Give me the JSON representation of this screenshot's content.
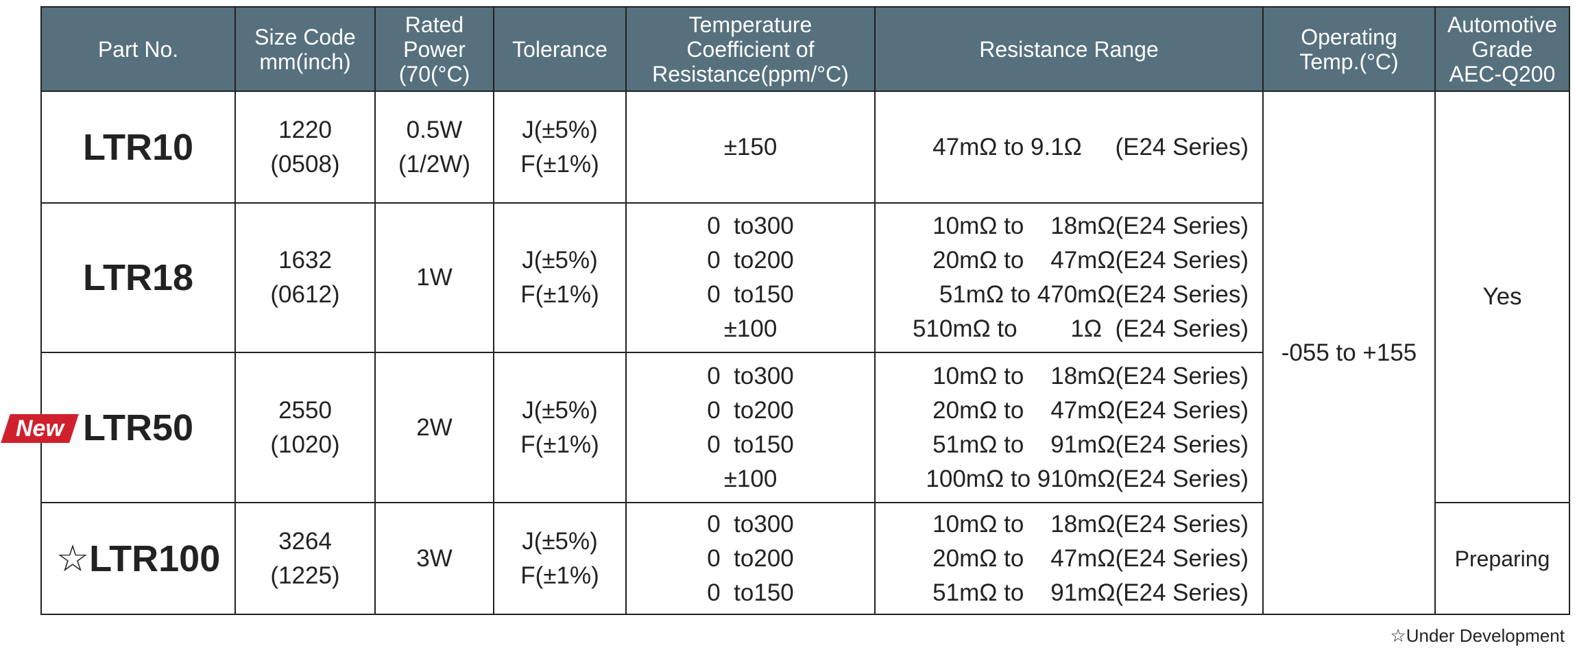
{
  "table": {
    "header": [
      [
        "Part No."
      ],
      [
        "Size Code",
        "mm(inch)"
      ],
      [
        "Rated",
        "Power",
        "(70(°C)"
      ],
      [
        "Tolerance"
      ],
      [
        "Temperature",
        "Coefficient of",
        "Resistance(ppm/°C)"
      ],
      [
        "Resistance Range"
      ],
      [
        "Operating",
        "Temp.(°C)"
      ],
      [
        "Automotive",
        "Grade",
        "AEC-Q200"
      ]
    ],
    "rows": [
      {
        "part": "LTR10",
        "size": [
          "1220",
          "(0508)"
        ],
        "power": [
          "0.5W",
          "(1/2W)"
        ],
        "tolerance": [
          "J(±5%)",
          "F(±1%)"
        ],
        "tcr": [
          "±150"
        ],
        "range": [
          "47mΩ to 9.1Ω     (E24 Series)"
        ]
      },
      {
        "part": "LTR18",
        "size": [
          "1632",
          "(0612)"
        ],
        "power": [
          "1W"
        ],
        "tolerance": [
          "J(±5%)",
          "F(±1%)"
        ],
        "tcr": [
          "0  to300",
          "0  to200",
          "0  to150",
          "±100"
        ],
        "range": [
          "10mΩ to    18mΩ(E24 Series)",
          "20mΩ to    47mΩ(E24 Series)",
          "51mΩ to 470mΩ(E24 Series)",
          "510mΩ to        1Ω  (E24 Series)"
        ]
      },
      {
        "badge": "New",
        "part": "LTR50",
        "size": [
          "2550",
          "(1020)"
        ],
        "power": [
          "2W"
        ],
        "tolerance": [
          "J(±5%)",
          "F(±1%)"
        ],
        "tcr": [
          "0  to300",
          "0  to200",
          "0  to150",
          "±100"
        ],
        "range": [
          "10mΩ to    18mΩ(E24 Series)",
          "20mΩ to    47mΩ(E24 Series)",
          "51mΩ to    91mΩ(E24 Series)",
          "100mΩ to 910mΩ(E24 Series)"
        ]
      },
      {
        "part": "☆LTR100",
        "size": [
          "3264",
          "(1225)"
        ],
        "power": [
          "3W"
        ],
        "tolerance": [
          "J(±5%)",
          "F(±1%)"
        ],
        "tcr": [
          "0  to300",
          "0  to200",
          "0  to150"
        ],
        "range": [
          "10mΩ to    18mΩ(E24 Series)",
          "20mΩ to    47mΩ(E24 Series)",
          "51mΩ to    91mΩ(E24 Series)"
        ]
      }
    ],
    "operating_temp": "-055 to +155",
    "automotive": [
      "Yes",
      "Preparing"
    ]
  },
  "footnote": "☆Under Development"
}
